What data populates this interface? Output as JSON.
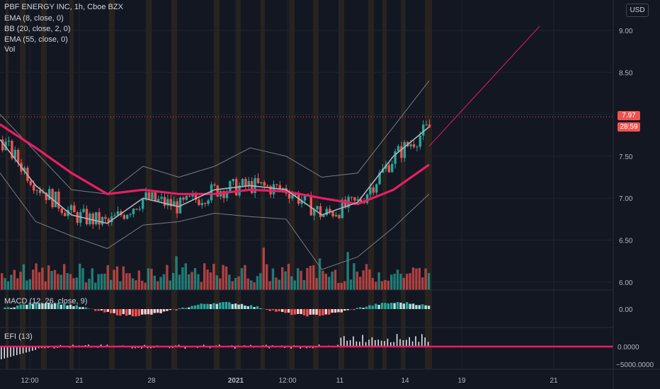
{
  "header": {
    "title": "PBF ENERGY INC, 1h, Cboe BZX",
    "indicators": [
      "EMA (8, close, 0)",
      "BB (20, close, 2, 0)",
      "EMA (55, close, 0)",
      "Vol"
    ]
  },
  "currency_button": "USD",
  "price_axis": {
    "ticks": [
      "9.00",
      "8.50",
      "8.00",
      "7.50",
      "7.00",
      "6.50",
      "6.00"
    ]
  },
  "last_price": {
    "value": "7.97",
    "countdown": "28:59"
  },
  "macd_pane": {
    "label": "MACD (12, 26, close, 9)",
    "tick": "0.00"
  },
  "efi_pane": {
    "label": "EFI (13)",
    "ticks": [
      "0.0000",
      "−5000.0000"
    ]
  },
  "time_axis": {
    "labels": [
      "12:00",
      "21",
      "28",
      "2021",
      "12:00",
      "11",
      "14",
      "19",
      "21"
    ]
  },
  "colors": {
    "background": "#131722",
    "up": "#26a69a",
    "down": "#ef5350",
    "ema55": "#e91e63",
    "ema8": "#b2b5be",
    "session_band": "#3a2d1e",
    "efi_line": "#e91e63"
  },
  "chart_data": {
    "type": "candlestick",
    "price_range": [
      6.0,
      9.1
    ],
    "series": [
      {
        "name": "EMA (55, close, 0)",
        "values": [
          7.88,
          7.6,
          7.3,
          7.05,
          7.1,
          7.05,
          7.05,
          7.1,
          7.08,
          7.0,
          6.93,
          7.1,
          7.4
        ]
      },
      {
        "name": "EMA (8, close, 0)",
        "values": [
          7.7,
          7.15,
          6.8,
          6.7,
          7.0,
          6.9,
          7.1,
          7.15,
          7.1,
          6.8,
          6.95,
          7.5,
          7.85
        ]
      },
      {
        "name": "BB (20, close, 2, 0)",
        "upper": [
          8.0,
          7.55,
          7.1,
          7.05,
          7.38,
          7.25,
          7.38,
          7.6,
          7.5,
          7.25,
          7.3,
          7.85,
          8.4
        ],
        "lower": [
          7.3,
          6.72,
          6.55,
          6.4,
          6.68,
          6.72,
          6.82,
          6.78,
          6.75,
          6.15,
          6.3,
          6.65,
          7.05
        ]
      }
    ],
    "projection": {
      "from": 7.62,
      "to": 9.05
    }
  }
}
